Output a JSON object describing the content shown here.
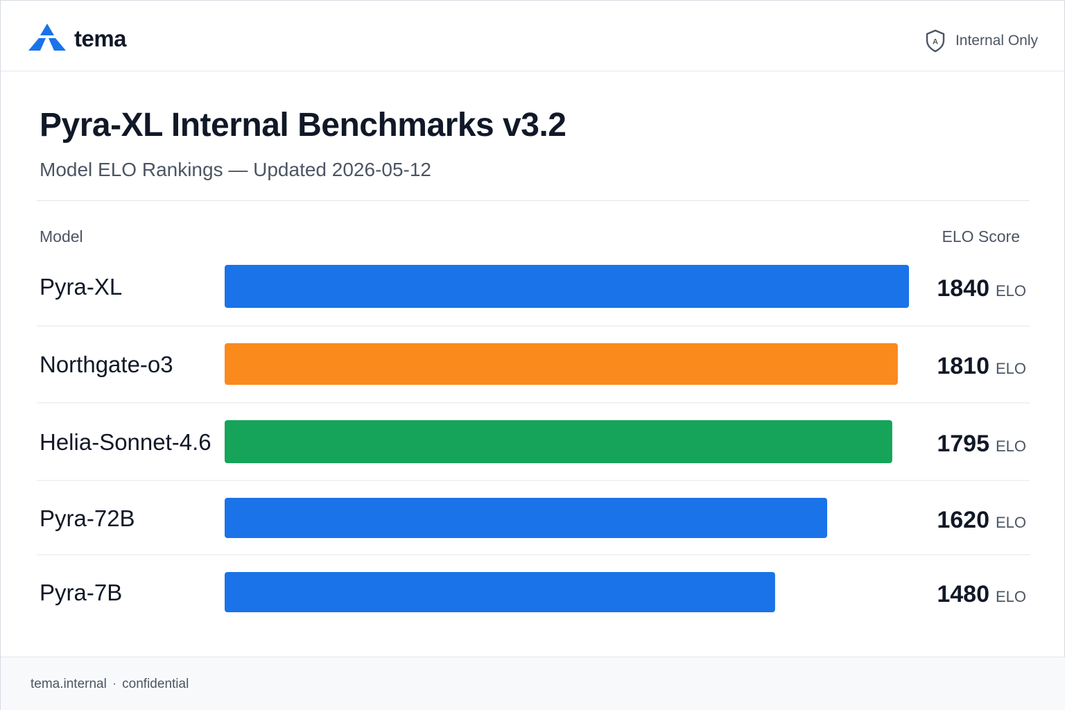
{
  "header": {
    "brand": "tema",
    "badge_label": "Internal Only",
    "badge_icon": "shield-lock-icon",
    "logo_icon": "triangle-logo-icon"
  },
  "page": {
    "title": "Pyra-XL Internal Benchmarks v3.2",
    "subtitle": "Model ELO Rankings — Updated 2026-05-12",
    "col_model": "Model",
    "col_score": "ELO Score"
  },
  "chart_data": {
    "type": "bar",
    "orientation": "horizontal",
    "title": "Pyra-XL Internal Benchmarks v3.2",
    "subtitle": "Model ELO Rankings — Updated 2026-05-12",
    "xlabel": "ELO Score",
    "ylabel": "Model",
    "unit": "ELO",
    "xlim": [
      0,
      1840
    ],
    "grid": false,
    "legend": "none",
    "categories": [
      "Pyra-XL",
      "Northgate-o3",
      "Helia-Sonnet-4.6",
      "Pyra-72B",
      "Pyra-7B"
    ],
    "values": [
      1840,
      1810,
      1795,
      1620,
      1480
    ],
    "colors": [
      "#1a73e8",
      "#fb8a1c",
      "#16a45a",
      "#1a73e8",
      "#1a73e8"
    ]
  },
  "footer": {
    "host": "tema.internal",
    "separator": "·",
    "note": "confidential"
  }
}
